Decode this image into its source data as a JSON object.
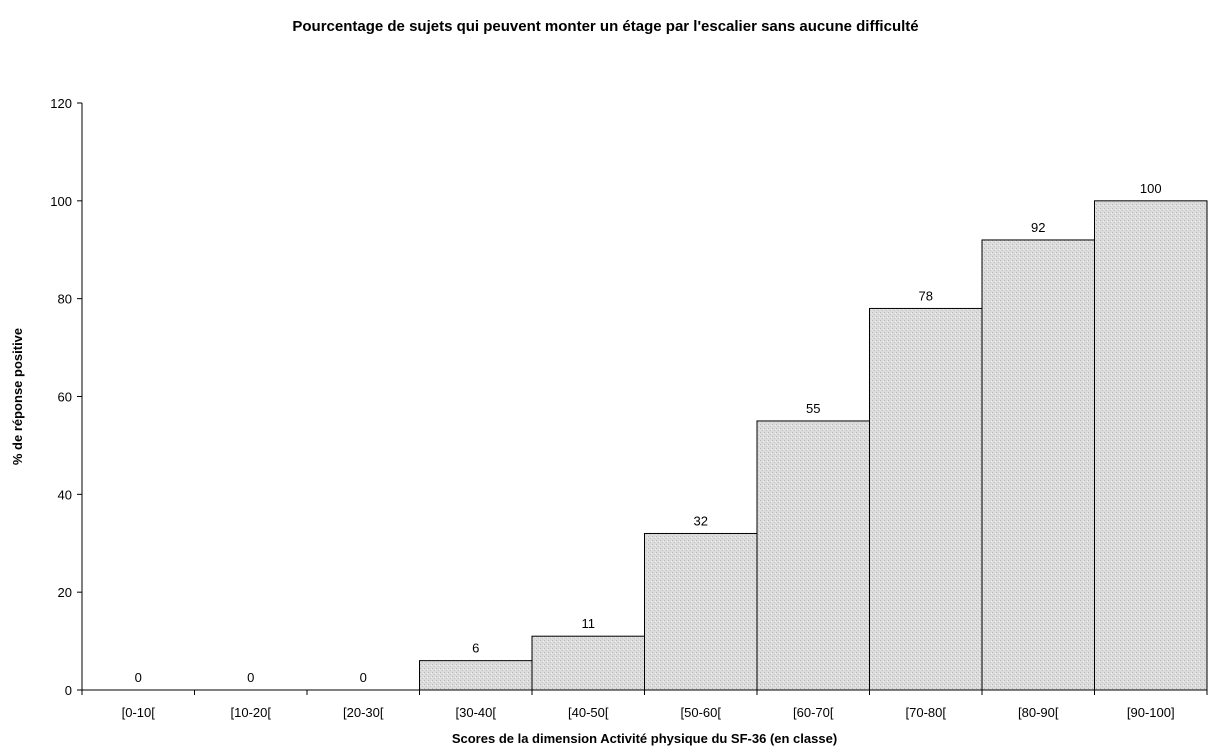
{
  "chart_data": {
    "type": "bar",
    "title": "Pourcentage de sujets qui peuvent monter un étage par l'escalier sans aucune difficulté",
    "xlabel": "Scores de la dimension Activité physique du SF-36 (en classe)",
    "ylabel": "% de réponse positive",
    "categories": [
      "[0-10[",
      "[10-20[",
      "[20-30[",
      "[30-40[",
      "[40-50[",
      "[50-60[",
      "[60-70[",
      "[70-80[",
      "[80-90[",
      "[90-100]"
    ],
    "values": [
      0,
      0,
      0,
      6,
      11,
      32,
      55,
      78,
      92,
      100
    ],
    "ylim": [
      0,
      120
    ],
    "yticks": [
      0,
      20,
      40,
      60,
      80,
      100,
      120
    ],
    "grid": false,
    "bar_color": "#d9d9d9"
  }
}
